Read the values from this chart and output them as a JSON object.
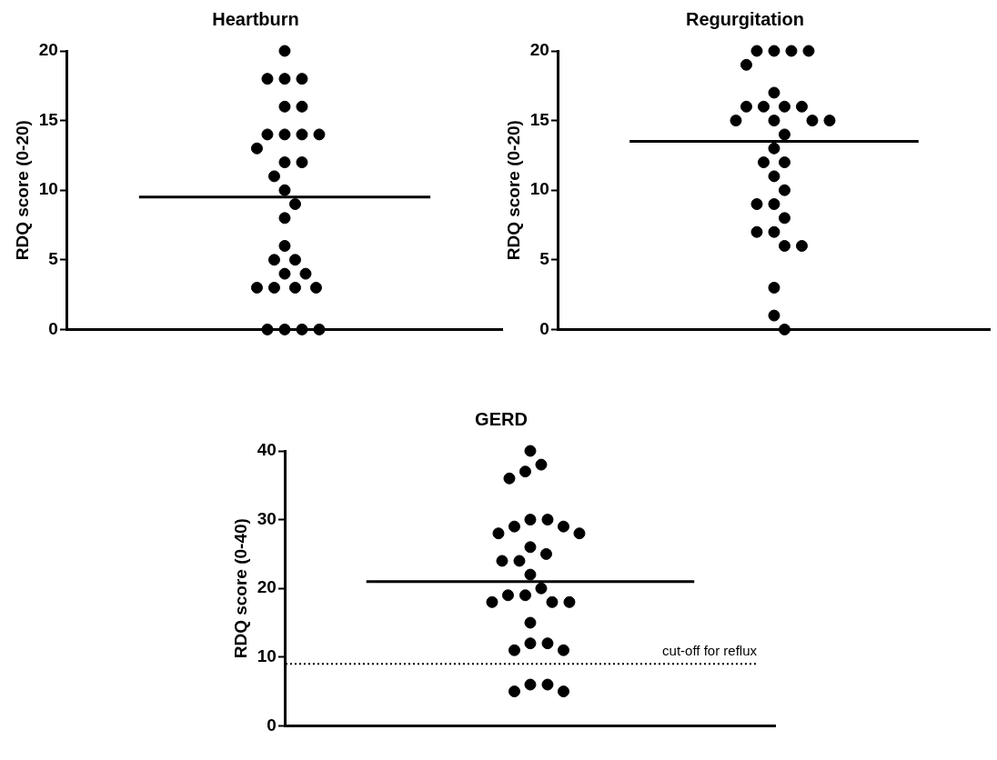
{
  "chart_data": [
    {
      "type": "scatter",
      "title": "Heartburn",
      "ylabel": "RDQ score (0-20)",
      "categories": [
        null
      ],
      "ylim": [
        0,
        20
      ],
      "yticks": [
        0,
        5,
        10,
        15,
        20
      ],
      "grid": false,
      "legend": false,
      "marker": "circle",
      "series": [
        {
          "color": "#000000",
          "x": [
            null,
            null,
            null,
            null,
            null,
            null,
            null,
            null,
            null,
            null,
            null,
            null,
            null,
            null,
            null,
            null,
            null,
            null,
            null,
            null,
            null,
            null,
            null,
            null,
            null,
            null,
            null,
            null,
            null,
            null
          ],
          "values": [
            20,
            18,
            18,
            18,
            16,
            16,
            14,
            14,
            14,
            14,
            13,
            12,
            12,
            11,
            10,
            9,
            8,
            6,
            5,
            5,
            4,
            4,
            3,
            3,
            3,
            3,
            0,
            0,
            0,
            0
          ]
        }
      ],
      "ref_lines": [
        {
          "axis": "y",
          "value": 9.5,
          "label": null,
          "color": "#000000",
          "line_style": "solid"
        }
      ]
    },
    {
      "type": "scatter",
      "title": "Regurgitation",
      "ylabel": "RDQ score (0-20)",
      "categories": [
        null
      ],
      "ylim": [
        0,
        20
      ],
      "yticks": [
        0,
        5,
        10,
        15,
        20
      ],
      "grid": false,
      "legend": false,
      "marker": "circle",
      "series": [
        {
          "color": "#000000",
          "x": [
            null,
            null,
            null,
            null,
            null,
            null,
            null,
            null,
            null,
            null,
            null,
            null,
            null,
            null,
            null,
            null,
            null,
            null,
            null,
            null,
            null,
            null,
            null,
            null,
            null,
            null,
            null,
            null,
            null,
            null
          ],
          "values": [
            20,
            20,
            20,
            20,
            19,
            17,
            16,
            16,
            16,
            16,
            15,
            15,
            15,
            15,
            14,
            13,
            12,
            12,
            11,
            10,
            9,
            9,
            8,
            7,
            7,
            6,
            6,
            3,
            1,
            0
          ]
        }
      ],
      "ref_lines": [
        {
          "axis": "y",
          "value": 13.5,
          "label": null,
          "color": "#000000",
          "line_style": "solid"
        }
      ]
    },
    {
      "type": "scatter",
      "title": "GERD",
      "ylabel": "RDQ score (0-40)",
      "categories": [
        null
      ],
      "ylim": [
        0,
        40
      ],
      "yticks": [
        0,
        10,
        20,
        30,
        40
      ],
      "grid": false,
      "legend": false,
      "marker": "circle",
      "series": [
        {
          "color": "#000000",
          "x": [
            null,
            null,
            null,
            null,
            null,
            null,
            null,
            null,
            null,
            null,
            null,
            null,
            null,
            null,
            null,
            null,
            null,
            null,
            null,
            null,
            null,
            null,
            null,
            null,
            null,
            null,
            null,
            null,
            null,
            null
          ],
          "values": [
            40,
            38,
            37,
            36,
            30,
            30,
            29,
            29,
            28,
            28,
            26,
            25,
            24,
            24,
            22,
            20,
            19,
            19,
            18,
            18,
            18,
            15,
            12,
            12,
            11,
            11,
            6,
            6,
            5,
            5
          ]
        }
      ],
      "ref_lines": [
        {
          "axis": "y",
          "value": 21,
          "label": null,
          "color": "#000000",
          "line_style": "solid"
        },
        {
          "axis": "y",
          "value": 9,
          "label": "cut-off for reflux",
          "color": "#000000",
          "line_style": "dotted"
        }
      ]
    }
  ]
}
